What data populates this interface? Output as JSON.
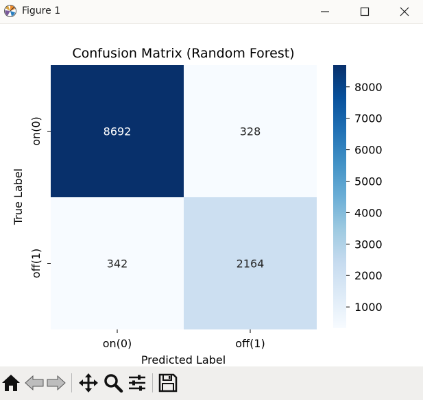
{
  "window": {
    "title": "Figure 1",
    "icons": {
      "app": "matplotlib-icon",
      "minimize": "minimize-icon",
      "maximize": "maximize-icon",
      "close": "close-icon"
    }
  },
  "chart_data": {
    "type": "heatmap",
    "title": "Confusion Matrix (Random Forest)",
    "xlabel": "Predicted Label",
    "ylabel": "True Label",
    "x_categories": [
      "on(0)",
      "off(1)"
    ],
    "y_categories": [
      "on(0)",
      "off(1)"
    ],
    "values": [
      [
        8692,
        328
      ],
      [
        342,
        2164
      ]
    ],
    "colormap": "Blues",
    "colors": {
      "min": "#f7fbff",
      "max": "#08306b"
    },
    "annotations": true,
    "colorbar": {
      "ticks": [
        1000,
        2000,
        3000,
        4000,
        5000,
        6000,
        7000,
        8000
      ],
      "range": [
        328,
        8692
      ]
    }
  },
  "toolbar": {
    "buttons": [
      {
        "name": "home-icon",
        "tooltip": "Reset original view"
      },
      {
        "name": "back-icon",
        "tooltip": "Back to previous view"
      },
      {
        "name": "forward-icon",
        "tooltip": "Forward to next view"
      },
      {
        "name": "pan-icon",
        "tooltip": "Pan axes"
      },
      {
        "name": "zoom-icon",
        "tooltip": "Zoom to rectangle"
      },
      {
        "name": "configure-icon",
        "tooltip": "Configure subplots"
      },
      {
        "name": "save-icon",
        "tooltip": "Save the figure"
      }
    ]
  }
}
